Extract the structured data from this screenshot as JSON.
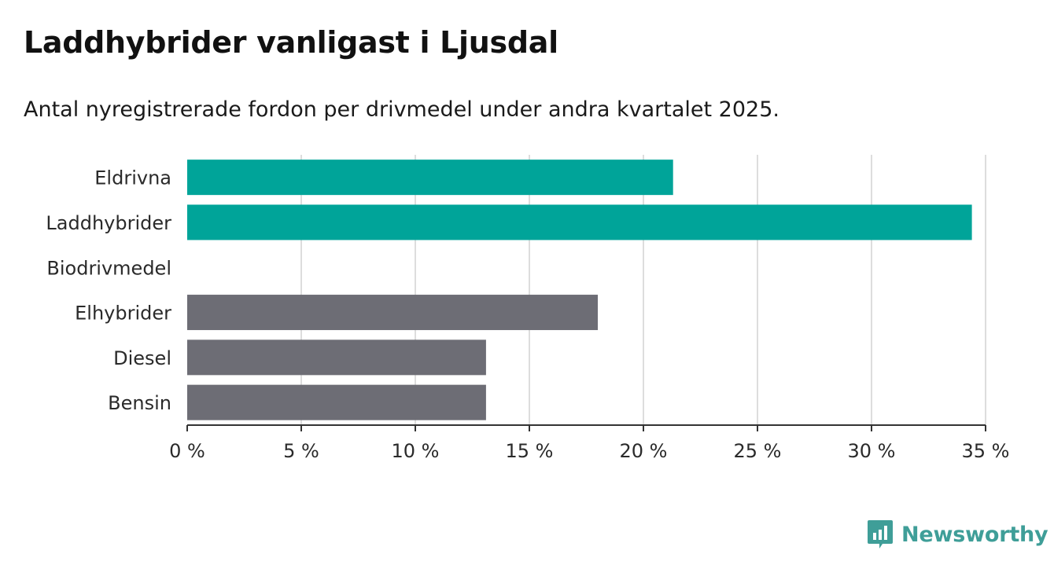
{
  "title": "Laddhybrider vanligast i Ljusdal",
  "subtitle": "Antal nyregistrerade fordon per drivmedel under andra kvartalet 2025.",
  "brand": {
    "name": "Newsworthy",
    "color": "#3f9e98",
    "icon": "bar-chart-icon"
  },
  "chart_data": {
    "type": "bar",
    "orientation": "horizontal",
    "categories": [
      "Eldrivna",
      "Laddhybrider",
      "Biodrivmedel",
      "Elhybrider",
      "Diesel",
      "Bensin"
    ],
    "values": [
      21.3,
      34.4,
      0,
      18.0,
      13.1,
      13.1
    ],
    "colors": [
      "#00a499",
      "#00a499",
      "#00a499",
      "#6d6d75",
      "#6d6d75",
      "#6d6d75"
    ],
    "xlim": [
      0,
      35
    ],
    "ticks": [
      0,
      5,
      10,
      15,
      20,
      25,
      30,
      35
    ],
    "tick_labels": [
      "0 %",
      "5 %",
      "10 %",
      "15 %",
      "20 %",
      "25 %",
      "30 %",
      "35 %"
    ],
    "xlabel": "",
    "ylabel": "",
    "grid": true
  }
}
